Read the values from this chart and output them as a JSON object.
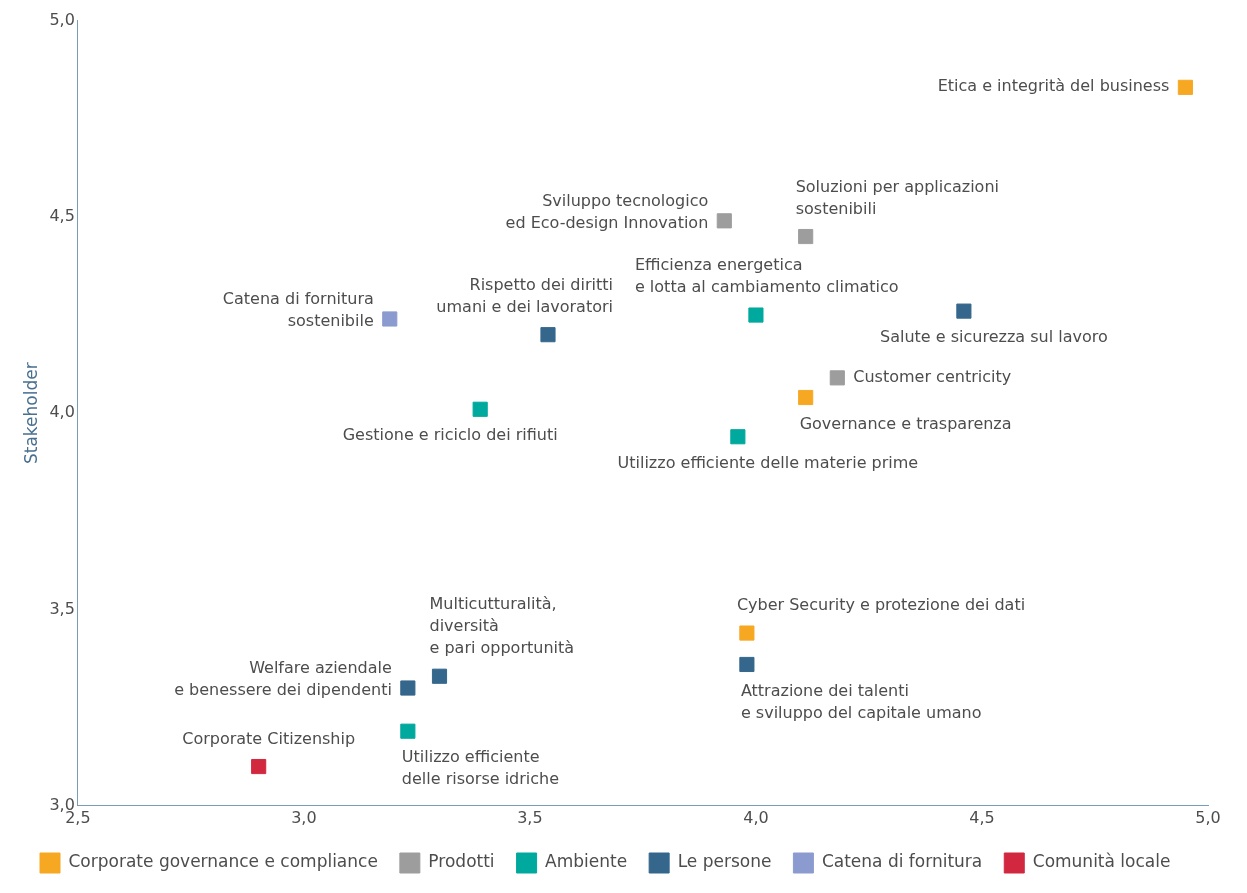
{
  "chart_data": {
    "type": "scatter",
    "ylabel": "Stakeholder",
    "xlim": [
      2.5,
      5.0
    ],
    "xticks": [
      {
        "value": 2.5,
        "label": "2,5"
      },
      {
        "value": 3.0,
        "label": "3,0"
      },
      {
        "value": 3.5,
        "label": "3,5"
      },
      {
        "value": 4.0,
        "label": "4,0"
      },
      {
        "value": 4.5,
        "label": "4,5"
      },
      {
        "value": 5.0,
        "label": "5,0"
      }
    ],
    "ylim": [
      3.0,
      5.0
    ],
    "yticks": [
      {
        "value": 3.0,
        "label": "3,0"
      },
      {
        "value": 3.5,
        "label": "3,5"
      },
      {
        "value": 4.0,
        "label": "4,0"
      },
      {
        "value": 4.5,
        "label": "4,5"
      },
      {
        "value": 5.0,
        "label": "5,0"
      }
    ],
    "grid": false,
    "legend": "bottom",
    "marker": "square",
    "series": [
      {
        "name": "Corporate governance e compliance",
        "color": "#f7a823",
        "x": [
          4.95,
          4.11,
          3.98
        ],
        "values": [
          4.83,
          4.04,
          3.44
        ]
      },
      {
        "name": "Prodotti",
        "color": "#9d9d9d",
        "x": [
          3.93,
          4.11,
          4.18
        ],
        "values": [
          4.49,
          4.45,
          4.09
        ]
      },
      {
        "name": "Ambiente",
        "color": "#00a99d",
        "x": [
          4.0,
          3.39,
          3.96,
          3.23
        ],
        "values": [
          4.25,
          4.01,
          3.94,
          3.19
        ]
      },
      {
        "name": "Le persone",
        "color": "#35678c",
        "x": [
          4.46,
          3.54,
          3.98,
          3.3,
          3.23
        ],
        "values": [
          4.26,
          4.2,
          3.36,
          3.33,
          3.3
        ]
      },
      {
        "name": "Catena di fornitura",
        "color": "#8b9bcf",
        "x": [
          3.19
        ],
        "values": [
          4.24
        ]
      },
      {
        "name": "Comunità locale",
        "color": "#d1283f",
        "x": [
          2.9
        ],
        "values": [
          3.1
        ]
      }
    ],
    "annotations": [
      {
        "text": "Etica e integrità del business",
        "x": 4.95,
        "y": 4.83
      },
      {
        "text": "Sviluppo tecnologico\ned Eco-design Innovation",
        "x": 3.93,
        "y": 4.49
      },
      {
        "text": "Soluzioni per applicazioni\nsostenibili",
        "x": 4.11,
        "y": 4.45
      },
      {
        "text": "Efficienza energetica\ne lotta al cambiamento climatico",
        "x": 4.0,
        "y": 4.25
      },
      {
        "text": "Salute e sicurezza sul lavoro",
        "x": 4.46,
        "y": 4.26
      },
      {
        "text": "Catena di fornitura\nsostenibile",
        "x": 3.19,
        "y": 4.24
      },
      {
        "text": "Rispetto dei diritti\numani e dei lavoratori",
        "x": 3.54,
        "y": 4.2
      },
      {
        "text": "Customer centricity",
        "x": 4.18,
        "y": 4.09
      },
      {
        "text": "Governance e trasparenza",
        "x": 4.11,
        "y": 4.04
      },
      {
        "text": "Gestione e riciclo dei rifiuti",
        "x": 3.39,
        "y": 4.01
      },
      {
        "text": "Utilizzo efficiente delle materie prime",
        "x": 3.96,
        "y": 3.94
      },
      {
        "text": "Cyber Security e protezione dei dati",
        "x": 3.98,
        "y": 3.44
      },
      {
        "text": "Attrazione dei talenti\ne sviluppo del capitale umano",
        "x": 3.98,
        "y": 3.36
      },
      {
        "text": "Multicutturalità,\ndiversità\ne pari opportunità",
        "x": 3.3,
        "y": 3.33
      },
      {
        "text": "Welfare aziendale\ne benessere dei dipendenti",
        "x": 3.23,
        "y": 3.3
      },
      {
        "text": "Utilizzo efficiente\ndelle risorse idriche",
        "x": 3.23,
        "y": 3.19
      },
      {
        "text": "Corporate Citizenship",
        "x": 2.9,
        "y": 3.1
      }
    ]
  }
}
